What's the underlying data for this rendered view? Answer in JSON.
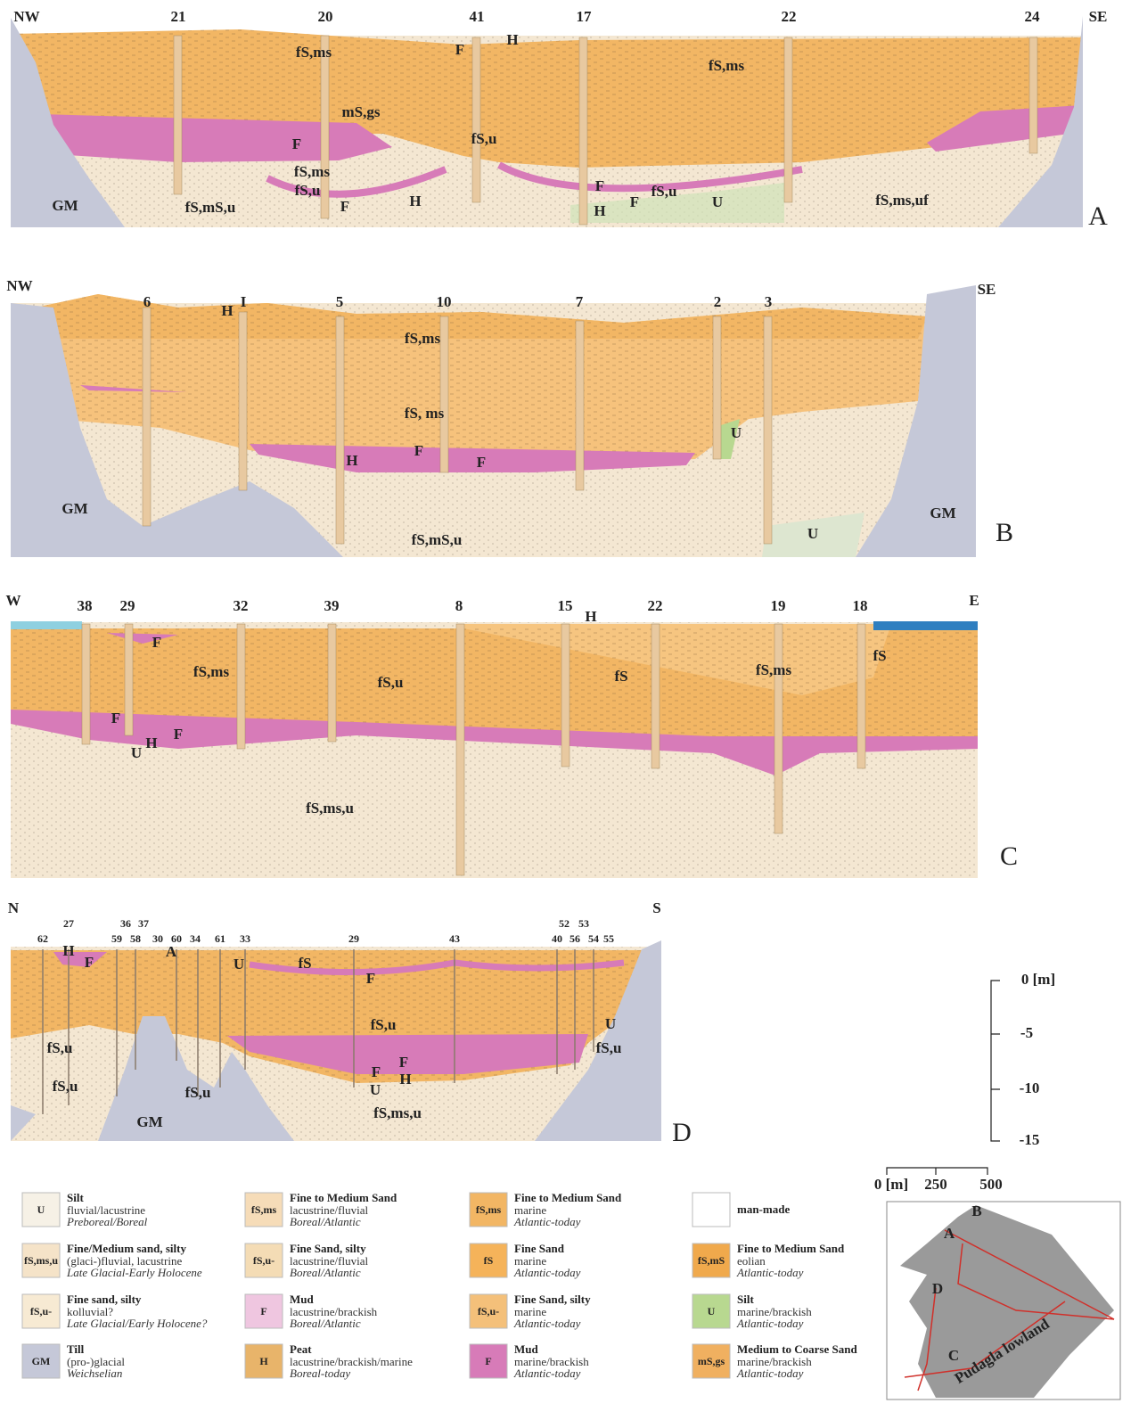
{
  "sections": [
    {
      "panel": "A",
      "left": "NW",
      "right": "SE",
      "boreholes": [
        "21",
        "20",
        "41",
        "17",
        "22",
        "24"
      ],
      "units": [
        "fS,ms",
        "H",
        "F",
        "fS,ms",
        "mS,gs",
        "F",
        "fS,u",
        "fS,ms",
        "fS,u",
        "GM",
        "fS,mS,u",
        "F",
        "H",
        "F",
        "fS,u",
        "F",
        "H",
        "U",
        "fS,ms,uf"
      ]
    },
    {
      "panel": "B",
      "left": "NW",
      "right": "SE",
      "boreholes": [
        "6",
        "I",
        "5",
        "10",
        "7",
        "2",
        "3"
      ],
      "units": [
        "H",
        "fS,ms",
        "fS, ms",
        "U",
        "F",
        "F",
        "H",
        "GM",
        "GM",
        "fS,mS,u",
        "U"
      ]
    },
    {
      "panel": "C",
      "left": "W",
      "right": "E",
      "boreholes": [
        "38",
        "29",
        "32",
        "39",
        "8",
        "15",
        "22",
        "19",
        "18"
      ],
      "units": [
        "H",
        "F",
        "fS,ms",
        "fS,u",
        "fS",
        "fS,ms",
        "fS",
        "F",
        "F",
        "H",
        "U",
        "fS,ms,u"
      ]
    },
    {
      "panel": "D",
      "left": "N",
      "right": "S",
      "boreholes": [
        "27",
        "36",
        "37",
        "52",
        "53",
        "62",
        "59",
        "58",
        "30",
        "60",
        "34",
        "61",
        "33",
        "29",
        "43",
        "40",
        "56",
        "54",
        "55"
      ],
      "units": [
        "H",
        "F",
        "A",
        "U",
        "fS",
        "F",
        "fS,u",
        "U",
        "fS,u",
        "fS,u",
        "F",
        "F",
        "H",
        "U",
        "fS,u",
        "fS,u",
        "GM",
        "fS,ms,u"
      ]
    }
  ],
  "vertical_scale": [
    "0 [m]",
    "-5",
    "-10",
    "-15"
  ],
  "horizontal_scale": [
    "0 [m]",
    "250",
    "500"
  ],
  "map": {
    "labels": [
      "B",
      "A",
      "D",
      "C"
    ],
    "area": "Pudagla lowland"
  },
  "legend": [
    {
      "code": "U",
      "title": "Silt",
      "lines": [
        "fluvial/lacustrine",
        "Preboreal/Boreal"
      ]
    },
    {
      "code": "fS,ms,u",
      "title": "Fine/Medium sand, silty",
      "lines": [
        "(glaci-)fluvial, lacustrine",
        "Late Glacial-Early Holocene"
      ]
    },
    {
      "code": "fS,u-",
      "title": "Fine sand, silty",
      "lines": [
        "kolluvial?",
        "Late Glacial/Early Holocene?"
      ]
    },
    {
      "code": "GM",
      "title": "Till",
      "lines": [
        "(pro-)glacial",
        "Weichselian"
      ]
    },
    {
      "code": "fS,ms",
      "title": "Fine to Medium Sand",
      "lines": [
        "lacustrine/fluvial",
        "Boreal/Atlantic"
      ]
    },
    {
      "code": "fS,u-",
      "title": "Fine Sand, silty",
      "lines": [
        "lacustrine/fluvial",
        "Boreal/Atlantic"
      ]
    },
    {
      "code": "F",
      "title": "Mud",
      "lines": [
        "lacustrine/brackish",
        "Boreal/Atlantic"
      ]
    },
    {
      "code": "H",
      "title": "Peat",
      "lines": [
        "lacustrine/brackish/marine",
        "Boreal-today"
      ]
    },
    {
      "code": "fS,ms",
      "title": "Fine to Medium Sand",
      "lines": [
        "marine",
        "Atlantic-today"
      ]
    },
    {
      "code": "fS",
      "title": "Fine Sand",
      "lines": [
        "marine",
        "Atlantic-today"
      ]
    },
    {
      "code": "fS,u-",
      "title": "Fine Sand, silty",
      "lines": [
        "marine",
        "Atlantic-today"
      ]
    },
    {
      "code": "F",
      "title": "Mud",
      "lines": [
        "marine/brackish",
        "Atlantic-today"
      ]
    },
    {
      "title": "man-made",
      "lines": []
    },
    {
      "code": "fS,mS",
      "title": "Fine to Medium Sand",
      "lines": [
        "eolian",
        "Atlantic-today"
      ]
    },
    {
      "code": "U",
      "title": "Silt",
      "lines": [
        "marine/brackish",
        "Atlantic-today"
      ]
    },
    {
      "code": "mS,gs",
      "title": "Medium to Coarse Sand",
      "lines": [
        "marine/brackish",
        "Atlantic-today"
      ]
    }
  ]
}
